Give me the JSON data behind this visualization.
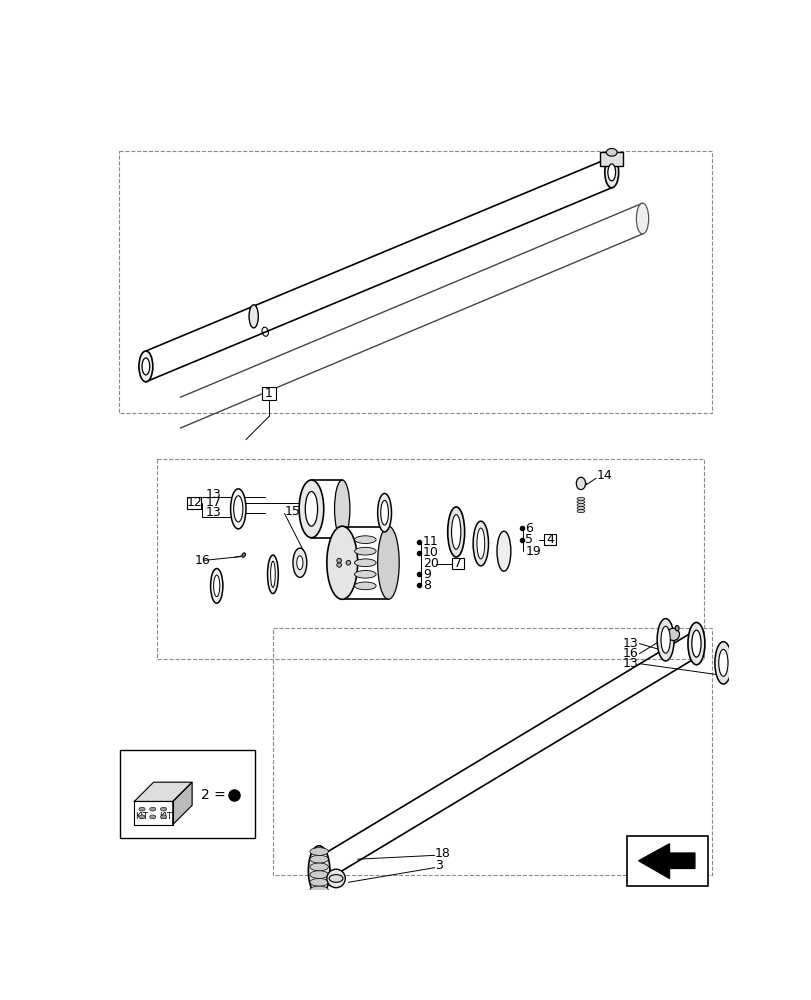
{
  "background_color": "#ffffff",
  "line_color": "#000000",
  "figsize": [
    8.12,
    10.0
  ],
  "dpi": 100
}
